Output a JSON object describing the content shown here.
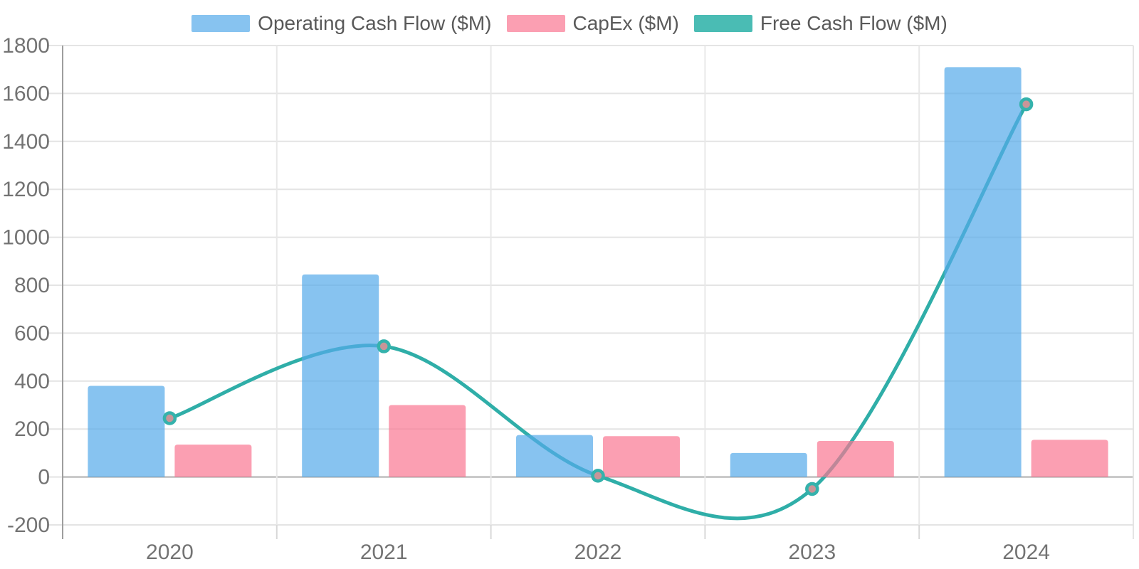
{
  "chart_data": {
    "type": "combo",
    "title": "",
    "categories": [
      "2020",
      "2021",
      "2022",
      "2023",
      "2024"
    ],
    "series": [
      {
        "name": "Operating Cash Flow ($M)",
        "type": "bar",
        "color": "rgba(84,169,233,0.7)",
        "values": [
          380,
          845,
          175,
          100,
          1710
        ]
      },
      {
        "name": "CapEx ($M)",
        "type": "bar",
        "color": "rgba(249,118,146,0.7)",
        "values": [
          135,
          300,
          170,
          150,
          155
        ]
      },
      {
        "name": "Free Cash Flow ($M)",
        "type": "line",
        "color": "#2FAEA8",
        "marker_ring_color": "#35B2AC",
        "marker_fill_color": "#C99598",
        "legend_color": "#4ABCB4",
        "values": [
          245,
          545,
          5,
          -50,
          1555
        ]
      }
    ],
    "y_axis": {
      "min": -200,
      "max": 1800,
      "tick_step": 200,
      "ticks": [
        -200,
        0,
        200,
        400,
        600,
        800,
        1000,
        1200,
        1400,
        1600,
        1800
      ]
    },
    "x_axis": {
      "label": ""
    },
    "legend_position": "top-center",
    "grid": "on",
    "style": {
      "gridline_color": "#E4E4E4",
      "zero_line_color": "#AEAEAE",
      "axis_spine_color": "#9E9E9E",
      "inner_boundary_color": "#E8E8E8",
      "tick_mark_color": "#D8D8D8",
      "tick_text_color": "#737373",
      "legend_text_color": "#595959"
    }
  }
}
